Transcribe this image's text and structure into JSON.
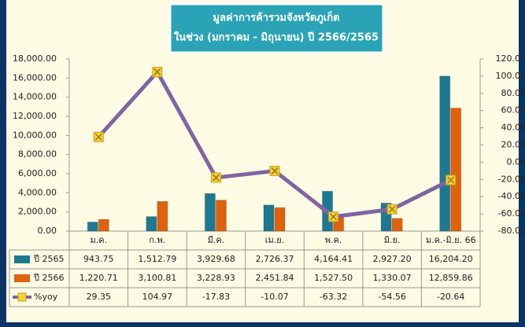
{
  "chart_data": {
    "type": "bar-line",
    "title": "มูลค่าการค้ารวมจังหวัดภูเก็ต",
    "subtitle": "ในช่วง (มกราคม - มิถุนายน) ปี 2566/2565",
    "categories": [
      "ม.ค.",
      "ก.พ.",
      "มี.ค.",
      "เม.ย.",
      "พ.ค.",
      "มิ.ย.",
      "ม.ค.-มิ.ย. 66"
    ],
    "series": [
      {
        "name": "ปี 2565",
        "color": "#1f7892",
        "values": [
          943.75,
          1512.79,
          3929.68,
          2726.37,
          4164.41,
          2927.2,
          16204.2
        ],
        "value_labels": [
          "943.75",
          "1,512.79",
          "3,929.68",
          "2,726.37",
          "4,164.41",
          "2,927.20",
          "16,204.20"
        ]
      },
      {
        "name": "ปี 2566",
        "color": "#e0620c",
        "values": [
          1220.71,
          3100.81,
          3228.93,
          2451.84,
          1527.5,
          1330.07,
          12859.86
        ],
        "value_labels": [
          "1,220.71",
          "3,100.81",
          "3,228.93",
          "2,451.84",
          "1,527.50",
          "1,330.07",
          "12,859.86"
        ]
      },
      {
        "name": "%yoy",
        "color": "#8064a2",
        "axis": "y2",
        "values": [
          29.35,
          104.97,
          -17.83,
          -10.07,
          -63.32,
          -54.56,
          -20.64
        ]
      }
    ],
    "ylim": [
      0,
      18000
    ],
    "yticks": [
      {
        "value": 0,
        "label": "0.00"
      },
      {
        "value": 2000,
        "label": "2,000.00"
      },
      {
        "value": 4000,
        "label": "4,000.00"
      },
      {
        "value": 6000,
        "label": "6,000.00"
      },
      {
        "value": 8000,
        "label": "8,000.00"
      },
      {
        "value": 10000,
        "label": "10,000.00"
      },
      {
        "value": 12000,
        "label": "12,000.00"
      },
      {
        "value": 14000,
        "label": "14,000.00"
      },
      {
        "value": 16000,
        "label": "16,000.00"
      },
      {
        "value": 18000,
        "label": "18,000.00"
      }
    ],
    "y2lim": [
      -80,
      120
    ],
    "y2ticks": [
      {
        "value": -80,
        "label": "-80.00"
      },
      {
        "value": -60,
        "label": "-60.00"
      },
      {
        "value": -40,
        "label": "-40.00"
      },
      {
        "value": -20,
        "label": "-20.00"
      },
      {
        "value": 0,
        "label": "0.00"
      },
      {
        "value": 20,
        "label": "20.00"
      },
      {
        "value": 40,
        "label": "40.00"
      },
      {
        "value": 60,
        "label": "60.00"
      },
      {
        "value": 80,
        "label": "80.00"
      },
      {
        "value": 100,
        "label": "100.00"
      },
      {
        "value": 120,
        "label": "120.00"
      }
    ]
  }
}
